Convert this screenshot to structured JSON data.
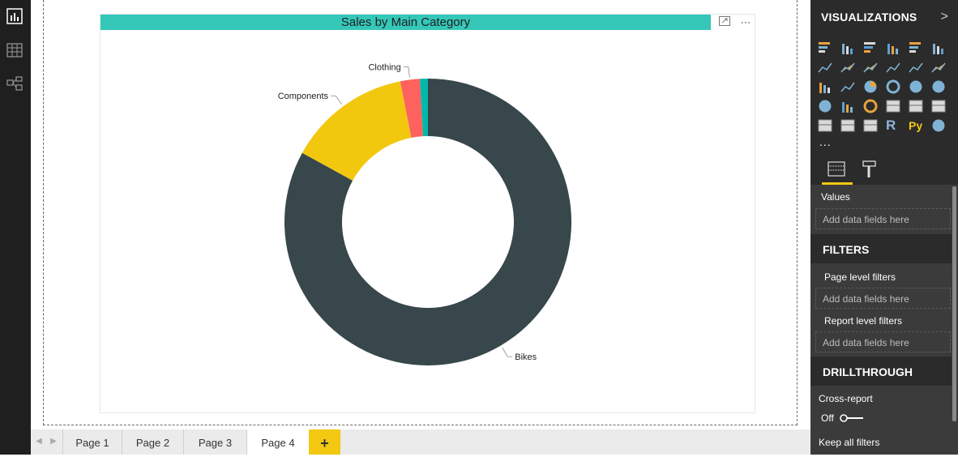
{
  "left_rail": {
    "icons": [
      "report-view-icon",
      "data-view-icon",
      "model-view-icon"
    ]
  },
  "visual": {
    "title": "Sales by Main Category",
    "title_bar_color": "#35c7b8"
  },
  "chart_data": {
    "type": "pie",
    "donut": true,
    "title": "Sales by Main Category",
    "slices": [
      {
        "label": "Bikes",
        "value": 83,
        "color": "#37474b"
      },
      {
        "label": "Components",
        "value": 13.9,
        "color": "#f2c80f"
      },
      {
        "label": "Clothing",
        "value": 2.2,
        "color": "#fd625e"
      },
      {
        "label": "",
        "value": 0.9,
        "color": "#01b8aa"
      }
    ]
  },
  "page_tabs": {
    "tabs": [
      "Page 1",
      "Page 2",
      "Page 3",
      "Page 4"
    ],
    "active": "Page 4",
    "add_label": "+"
  },
  "visualizations": {
    "title": "VISUALIZATIONS",
    "chevron": ">",
    "more": "...",
    "r_label": "R",
    "py_label": "Py"
  },
  "fields": {
    "values_label": "Values",
    "add_fields_text": "Add data fields here"
  },
  "filters": {
    "header": "FILTERS",
    "page_level": "Page level filters",
    "page_add": "Add data fields here",
    "report_level": "Report level filters",
    "report_add": "Add data fields here"
  },
  "drillthrough": {
    "header": "DRILLTHROUGH",
    "cross_report": "Cross-report",
    "toggle_state": "Off",
    "keep_filters": "Keep all filters"
  },
  "colors": {
    "accent": "#f2c811",
    "teal": "#35c7b8",
    "pane_bg": "#3b3b3b",
    "pane_dark": "#2b2b2b"
  }
}
